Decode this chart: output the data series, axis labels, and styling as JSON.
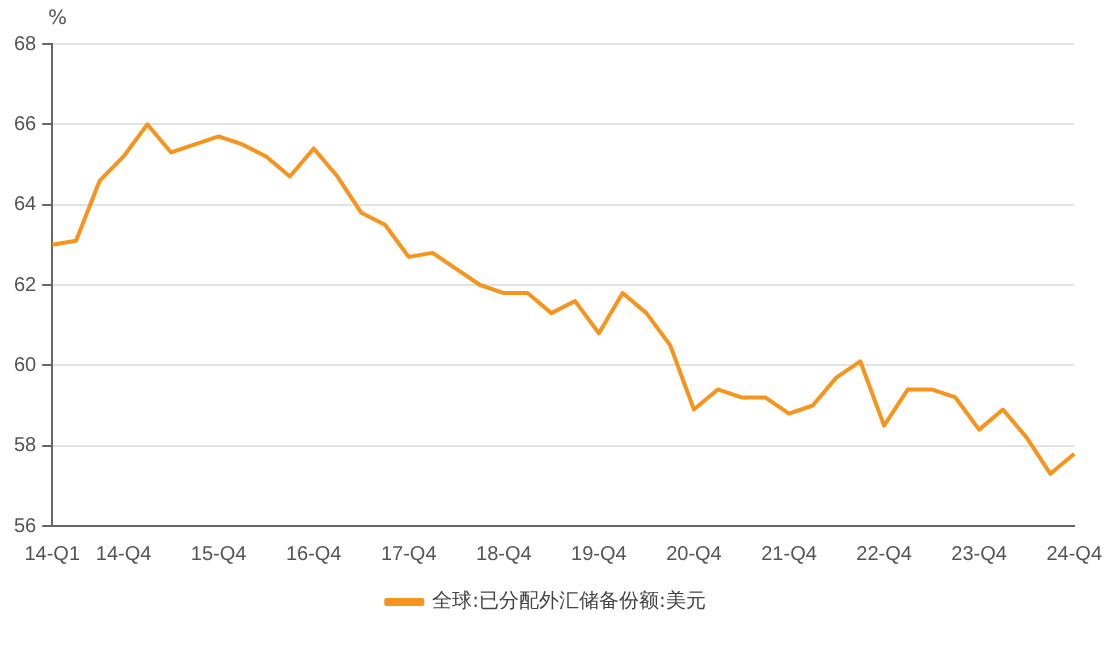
{
  "chart_data": {
    "type": "line",
    "ylabel": "%",
    "categories": [
      "14-Q1",
      null,
      null,
      "14-Q4",
      null,
      null,
      null,
      "15-Q4",
      null,
      null,
      null,
      "16-Q4",
      null,
      null,
      null,
      "17-Q4",
      null,
      null,
      null,
      "18-Q4",
      null,
      null,
      null,
      "19-Q4",
      null,
      null,
      null,
      "20-Q4",
      null,
      null,
      null,
      "21-Q4",
      null,
      null,
      null,
      "22-Q4",
      null,
      null,
      null,
      "23-Q4",
      null,
      null,
      null,
      "24-Q4"
    ],
    "series": [
      {
        "name": "全球:已分配外汇储备份额:美元",
        "color": "#f7941d",
        "values": [
          63.0,
          63.1,
          64.6,
          65.2,
          66.0,
          65.3,
          65.5,
          65.7,
          65.5,
          65.2,
          64.7,
          65.4,
          64.7,
          63.8,
          63.5,
          62.7,
          62.8,
          62.4,
          62.0,
          61.8,
          61.8,
          61.3,
          61.6,
          60.8,
          61.8,
          61.3,
          60.5,
          58.9,
          59.4,
          59.2,
          59.2,
          58.8,
          59.0,
          59.7,
          60.1,
          58.5,
          59.4,
          59.4,
          59.2,
          58.4,
          58.9,
          58.2,
          57.3,
          57.8
        ]
      }
    ],
    "ylim": [
      56,
      68
    ],
    "yticks": [
      56,
      58,
      60,
      62,
      64,
      66,
      68
    ],
    "grid": "y",
    "legend": "bottom",
    "marker": "none",
    "line_style": "solid"
  }
}
